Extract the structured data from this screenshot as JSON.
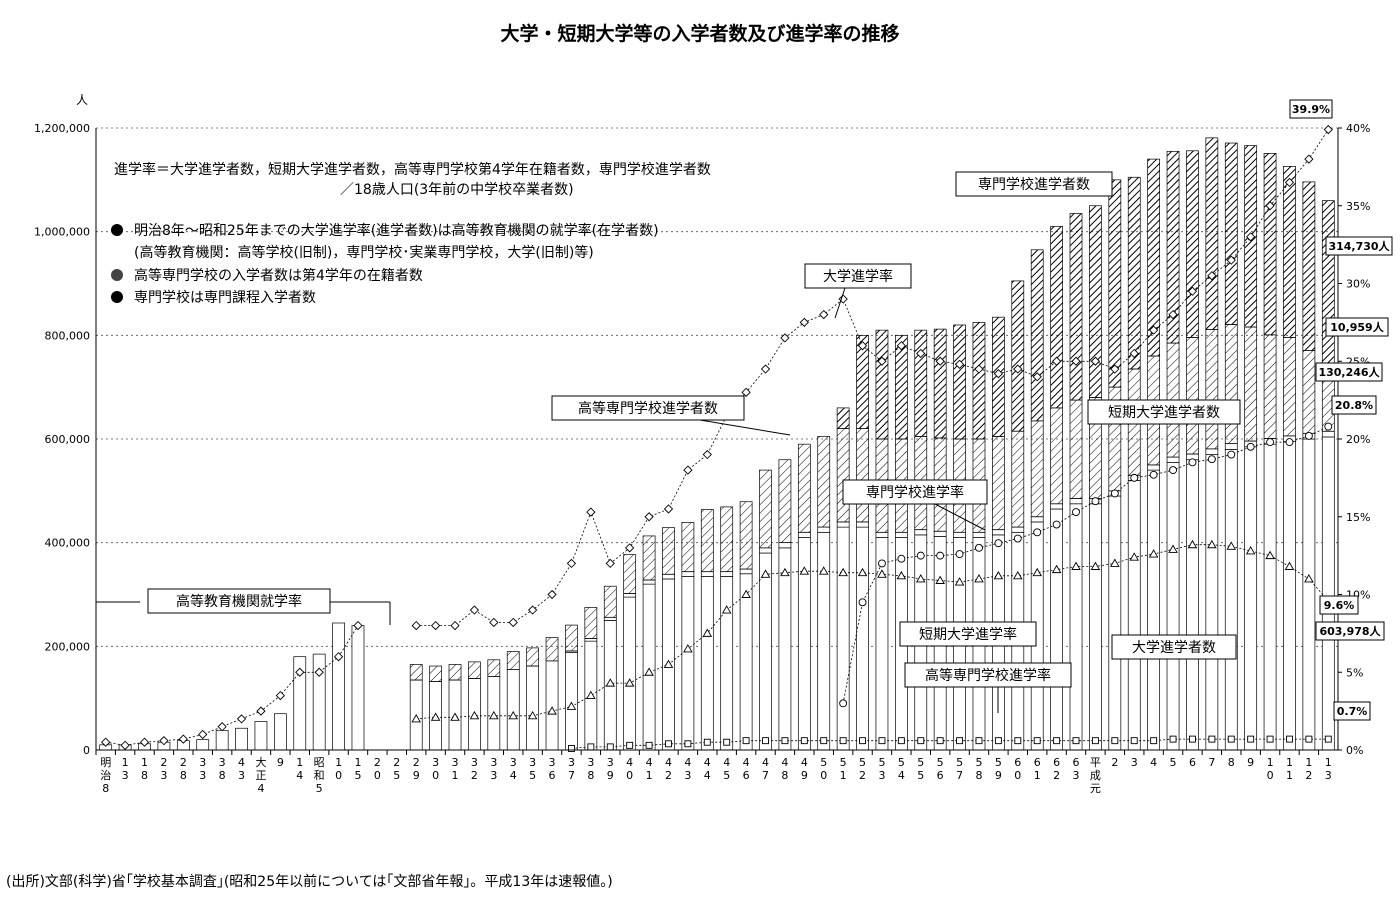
{
  "chart_data": {
    "type": "bar",
    "title": "大学・短期大学等の入学者数及び進学率の推移",
    "y_left_unit": "人",
    "y_left_ticks": [
      "0",
      "200,000",
      "400,000",
      "600,000",
      "800,000",
      "1,000,000",
      "1,200,000"
    ],
    "y_left_range": [
      0,
      1200000
    ],
    "y_right_ticks": [
      "0%",
      "5%",
      "10%",
      "15%",
      "20%",
      "25%",
      "30%",
      "35%",
      "40%"
    ],
    "y_right_range": [
      0,
      40
    ],
    "categories": [
      "明治8",
      "13",
      "18",
      "23",
      "28",
      "33",
      "38",
      "43",
      "大正4",
      "9",
      "14",
      "昭和5",
      "10",
      "15",
      "20",
      "25",
      "29",
      "30",
      "31",
      "32",
      "33",
      "34",
      "35",
      "36",
      "37",
      "38",
      "39",
      "40",
      "41",
      "42",
      "43",
      "44",
      "45",
      "46",
      "47",
      "48",
      "49",
      "50",
      "51",
      "52",
      "53",
      "54",
      "55",
      "56",
      "57",
      "58",
      "59",
      "60",
      "61",
      "62",
      "63",
      "平成元",
      "2",
      "3",
      "4",
      "5",
      "6",
      "7",
      "8",
      "9",
      "10",
      "11",
      "12",
      "13"
    ],
    "series": [
      {
        "name": "大学進学者数",
        "kind": "bar",
        "values": [
          10000,
          10000,
          12000,
          15000,
          18000,
          20000,
          38000,
          42000,
          55000,
          70000,
          180000,
          185000,
          245000,
          240000,
          null,
          null,
          135000,
          132000,
          135000,
          138000,
          142000,
          155000,
          162000,
          172000,
          188000,
          210000,
          250000,
          295000,
          320000,
          330000,
          335000,
          335000,
          335000,
          340000,
          380000,
          390000,
          410000,
          420000,
          430000,
          430000,
          410000,
          410000,
          415000,
          412000,
          410000,
          410000,
          415000,
          420000,
          440000,
          465000,
          475000,
          475000,
          490000,
          520000,
          540000,
          555000,
          560000,
          570000,
          580000,
          585000,
          590000,
          595000,
          600000,
          603978
        ]
      },
      {
        "name": "高等専門学校進学者数",
        "kind": "bar",
        "values": [
          null,
          null,
          null,
          null,
          null,
          null,
          null,
          null,
          null,
          null,
          null,
          null,
          null,
          null,
          null,
          null,
          null,
          null,
          null,
          null,
          null,
          null,
          null,
          null,
          3000,
          5000,
          6000,
          7000,
          8000,
          9000,
          9000,
          9000,
          9000,
          9000,
          10000,
          10000,
          10000,
          10000,
          10000,
          10000,
          10000,
          10000,
          10000,
          10000,
          10000,
          10000,
          10000,
          10000,
          10000,
          10000,
          10000,
          10000,
          10000,
          10000,
          10000,
          10000,
          11000,
          11000,
          11000,
          11000,
          11000,
          11000,
          11000,
          10959
        ]
      },
      {
        "name": "短期大学進学者数",
        "kind": "bar",
        "values": [
          null,
          null,
          null,
          null,
          null,
          null,
          null,
          null,
          null,
          null,
          null,
          null,
          null,
          null,
          null,
          null,
          30000,
          30000,
          30000,
          32000,
          32000,
          35000,
          35000,
          45000,
          50000,
          60000,
          60000,
          75000,
          85000,
          90000,
          95000,
          120000,
          125000,
          130000,
          150000,
          160000,
          170000,
          175000,
          180000,
          180000,
          180000,
          180000,
          180000,
          180000,
          180000,
          180000,
          180000,
          185000,
          185000,
          185000,
          190000,
          195000,
          200000,
          205000,
          210000,
          220000,
          225000,
          230000,
          230000,
          220000,
          200000,
          190000,
          160000,
          130246
        ]
      },
      {
        "name": "専門学校進学者数",
        "kind": "bar",
        "values": [
          null,
          null,
          null,
          null,
          null,
          null,
          null,
          null,
          null,
          null,
          null,
          null,
          null,
          null,
          null,
          null,
          null,
          null,
          null,
          null,
          null,
          null,
          null,
          null,
          null,
          null,
          null,
          null,
          null,
          null,
          null,
          null,
          null,
          null,
          null,
          null,
          null,
          null,
          40000,
          180000,
          210000,
          200000,
          205000,
          210000,
          220000,
          225000,
          230000,
          290000,
          330000,
          350000,
          360000,
          370000,
          400000,
          370000,
          380000,
          370000,
          360000,
          370000,
          350000,
          350000,
          350000,
          330000,
          325000,
          314730
        ]
      },
      {
        "name": "大学進学率",
        "kind": "line",
        "values": [
          0.5,
          0.3,
          0.5,
          0.6,
          0.7,
          1.0,
          1.5,
          2.0,
          2.5,
          3.5,
          5.0,
          5.0,
          6.0,
          8.0,
          null,
          null,
          8.0,
          8.0,
          8.0,
          9.0,
          8.2,
          8.2,
          9.0,
          10.0,
          12.0,
          15.3,
          12.0,
          13.0,
          15.0,
          15.5,
          18.0,
          19.0,
          21.5,
          23.0,
          24.5,
          26.5,
          27.5,
          28.0,
          29.0,
          26.0,
          25.0,
          26.0,
          25.5,
          25.0,
          24.8,
          24.5,
          24.2,
          24.5,
          24.0,
          25.0,
          25.0,
          25.0,
          24.5,
          25.5,
          27.0,
          28.0,
          29.5,
          30.5,
          31.5,
          33.0,
          35.0,
          36.5,
          38.0,
          39.9
        ]
      },
      {
        "name": "短期大学進学率",
        "kind": "line",
        "values": [
          null,
          null,
          null,
          null,
          null,
          null,
          null,
          null,
          null,
          null,
          null,
          null,
          null,
          null,
          null,
          null,
          2.0,
          2.1,
          2.1,
          2.2,
          2.2,
          2.2,
          2.2,
          2.5,
          2.8,
          3.5,
          4.3,
          4.3,
          5.0,
          5.5,
          6.5,
          7.5,
          9.0,
          10.0,
          11.3,
          11.4,
          11.5,
          11.5,
          11.4,
          11.4,
          11.3,
          11.2,
          11.0,
          10.9,
          10.8,
          11.0,
          11.2,
          11.2,
          11.4,
          11.6,
          11.8,
          11.8,
          12.0,
          12.4,
          12.6,
          12.9,
          13.2,
          13.2,
          13.1,
          12.8,
          12.5,
          11.8,
          11.0,
          9.6
        ]
      },
      {
        "name": "高等専門学校進学率",
        "kind": "line",
        "values": [
          null,
          null,
          null,
          null,
          null,
          null,
          null,
          null,
          null,
          null,
          null,
          null,
          null,
          null,
          null,
          null,
          null,
          null,
          null,
          null,
          null,
          null,
          null,
          null,
          0.1,
          0.2,
          0.2,
          0.3,
          0.3,
          0.4,
          0.4,
          0.5,
          0.5,
          0.6,
          0.6,
          0.6,
          0.6,
          0.6,
          0.6,
          0.6,
          0.6,
          0.6,
          0.6,
          0.6,
          0.6,
          0.6,
          0.6,
          0.6,
          0.6,
          0.6,
          0.6,
          0.6,
          0.6,
          0.6,
          0.6,
          0.7,
          0.7,
          0.7,
          0.7,
          0.7,
          0.7,
          0.7,
          0.7,
          0.7
        ]
      },
      {
        "name": "専門学校進学率",
        "kind": "line",
        "values": [
          null,
          null,
          null,
          null,
          null,
          null,
          null,
          null,
          null,
          null,
          null,
          null,
          null,
          null,
          null,
          null,
          null,
          null,
          null,
          null,
          null,
          null,
          null,
          null,
          null,
          null,
          null,
          null,
          null,
          null,
          null,
          null,
          null,
          null,
          null,
          null,
          null,
          null,
          3.0,
          9.5,
          12.0,
          12.3,
          12.5,
          12.5,
          12.6,
          13.0,
          13.3,
          13.6,
          14.0,
          14.5,
          15.3,
          16.0,
          16.5,
          17.5,
          17.7,
          18.0,
          18.5,
          18.7,
          19.0,
          19.5,
          19.8,
          19.8,
          20.2,
          20.8
        ]
      }
    ],
    "end_labels": [
      "39.9%",
      "314,730人",
      "10,959人",
      "130,246人",
      "20.8%",
      "9.6%",
      "603,978人",
      "0.7%"
    ],
    "callouts": {
      "senmon_gakko_shingakusha": "専門学校進学者数",
      "daigaku_shingakuritsu": "大学進学率",
      "kosen_shingakusha": "高等専門学校進学者数",
      "tandai_shingakusha": "短期大学進学者数",
      "senmon_gakko_shingakuritsu": "専門学校進学率",
      "kotokyoiku_shugakuritsu": "高等教育機関就学率",
      "tandai_shingakuritsu": "短期大学進学率",
      "kosen_shingakuritsu": "高等専門学校進学率",
      "daigaku_shingakusha": "大学進学者数"
    },
    "notes": {
      "formula_line1": "進学率＝大学進学者数，短期大学進学者数，高等専門学校第4学年在籍者数，専門学校進学者数",
      "formula_line2": "／18歳人口(3年前の中学校卒業者数)",
      "bullet1": "明治8年～昭和25年までの大学進学率(進学者数)は高等教育機関の就学率(在学者数)",
      "bullet1_sub": "(高等教育機関：高等学校(旧制)，専門学校･実業専門学校，大学(旧制)等)",
      "bullet2": "高等専門学校の入学者数は第4学年の在籍者数",
      "bullet3": "専門学校は専門課程入学者数"
    },
    "source": "(出所)文部(科学)省｢学校基本調査｣(昭和25年以前については｢文部省年報｣。平成13年は速報値。)",
    "grid": "dotted horizontal"
  }
}
